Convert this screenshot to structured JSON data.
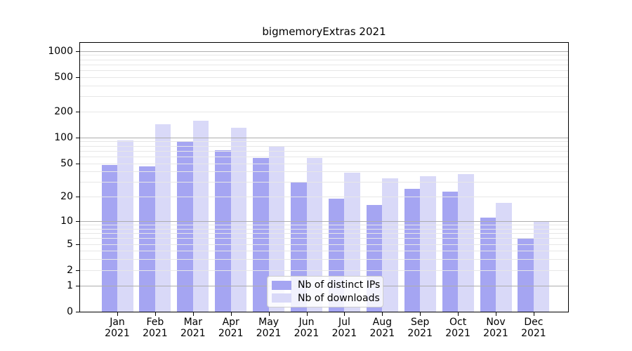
{
  "chart_data": {
    "type": "bar",
    "title": "bigmemoryExtras 2021",
    "categories": [
      "Jan 2021",
      "Feb 2021",
      "Mar 2021",
      "Apr 2021",
      "May 2021",
      "Jun 2021",
      "Jul 2021",
      "Aug 2021",
      "Sep 2021",
      "Oct 2021",
      "Nov 2021",
      "Dec 2021"
    ],
    "series": [
      {
        "name": "Nb of distinct IPs",
        "color": "#a5a5f2",
        "values": [
          48,
          46,
          90,
          71,
          58,
          30,
          19,
          16,
          25,
          23,
          11,
          6
        ]
      },
      {
        "name": "Nb of downloads",
        "color": "#d9d9f8",
        "values": [
          93,
          142,
          155,
          129,
          80,
          58,
          39,
          33,
          35,
          37,
          17,
          10
        ]
      }
    ],
    "xlabel": "",
    "ylabel": "",
    "yscale": "log1p",
    "yticks": [
      0,
      1,
      2,
      5,
      10,
      20,
      50,
      100,
      200,
      500,
      1000
    ],
    "ylim": [
      0,
      1280
    ],
    "grid": {
      "horizontal": true,
      "major_at_powers_of_10": true,
      "minor_steps_2_to_9": true
    },
    "legend": {
      "position": "inside lower center",
      "frame": true
    },
    "colors": {
      "axis": "#000000",
      "grid_major": "#adadad",
      "grid_minor": "#e7e7e7",
      "background": "#ffffff"
    }
  }
}
